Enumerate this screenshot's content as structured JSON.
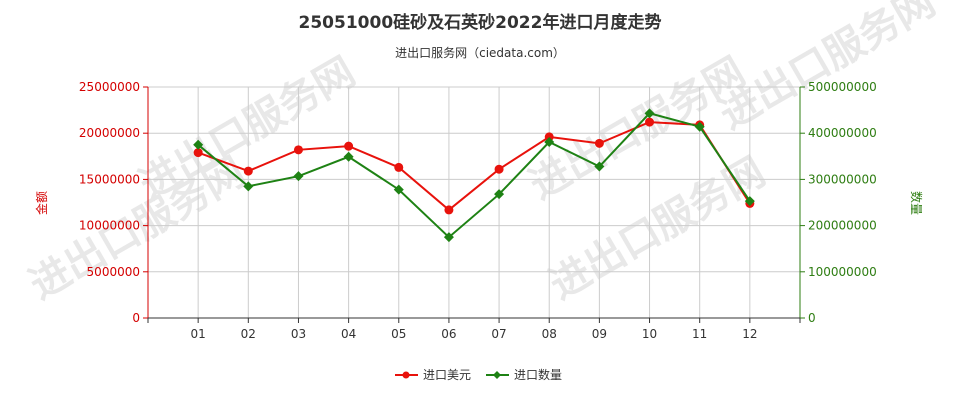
{
  "title": "25051000硅砂及石英砂2022年进口月度走势",
  "subtitle": "进出口服务网（ciedata.com）",
  "watermark": "进出口服务网",
  "colors": {
    "amount": "#e8120c",
    "quantity": "#1e8214",
    "left_axis": "#d40000",
    "right_axis": "#2e7d12",
    "grid": "#cccccc"
  },
  "chart_data": {
    "type": "line",
    "categories": [
      "01",
      "02",
      "03",
      "04",
      "05",
      "06",
      "07",
      "08",
      "09",
      "10",
      "11",
      "12"
    ],
    "series": [
      {
        "name": "进口美元",
        "axis": "left",
        "marker": "circle",
        "values": [
          17900000,
          15900000,
          18200000,
          18600000,
          16300000,
          11700000,
          16100000,
          19600000,
          18900000,
          21200000,
          20900000,
          12400000
        ]
      },
      {
        "name": "进口数量",
        "axis": "right",
        "marker": "diamond",
        "values": [
          375000000,
          285000000,
          307000000,
          349000000,
          278000000,
          175000000,
          268000000,
          381000000,
          328000000,
          443000000,
          414000000,
          253000000
        ]
      }
    ],
    "y_left": {
      "label": "金额",
      "min": 0,
      "max": 25000000,
      "ticks": [
        "0",
        "5000000",
        "10000000",
        "15000000",
        "20000000",
        "25000000"
      ]
    },
    "y_right": {
      "label": "数量",
      "min": 0,
      "max": 500000000,
      "ticks": [
        "0",
        "100000000",
        "200000000",
        "300000000",
        "400000000",
        "500000000"
      ]
    },
    "grid": true,
    "legend_position": "bottom"
  }
}
